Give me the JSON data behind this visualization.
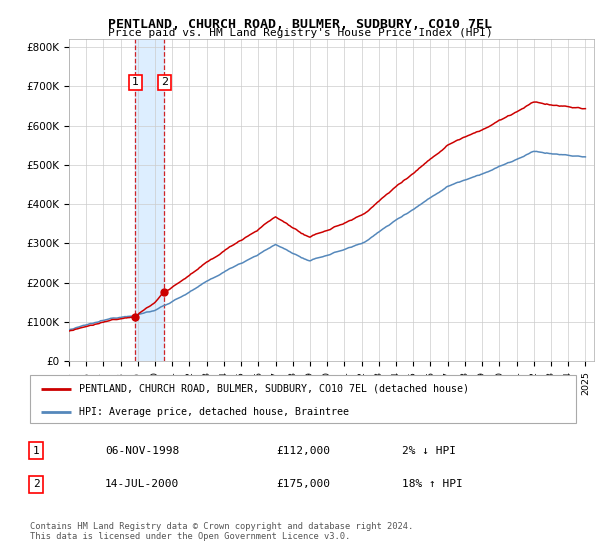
{
  "title": "PENTLAND, CHURCH ROAD, BULMER, SUDBURY, CO10 7EL",
  "subtitle": "Price paid vs. HM Land Registry's House Price Index (HPI)",
  "legend_line1": "PENTLAND, CHURCH ROAD, BULMER, SUDBURY, CO10 7EL (detached house)",
  "legend_line2": "HPI: Average price, detached house, Braintree",
  "table_row1": [
    "1",
    "06-NOV-1998",
    "£112,000",
    "2% ↓ HPI"
  ],
  "table_row2": [
    "2",
    "14-JUL-2000",
    "£175,000",
    "18% ↑ HPI"
  ],
  "footer": "Contains HM Land Registry data © Crown copyright and database right 2024.\nThis data is licensed under the Open Government Licence v3.0.",
  "red_color": "#cc0000",
  "blue_color": "#5588bb",
  "shade_color": "#ddeeff",
  "sale1_year": 1998.85,
  "sale1_price": 112000,
  "sale2_year": 2000.54,
  "sale2_price": 175000,
  "ylim": [
    0,
    820000
  ],
  "yticks": [
    0,
    100000,
    200000,
    300000,
    400000,
    500000,
    600000,
    700000,
    800000
  ],
  "ytick_labels": [
    "£0",
    "£100K",
    "£200K",
    "£300K",
    "£400K",
    "£500K",
    "£600K",
    "£700K",
    "£800K"
  ],
  "xmin": 1995.0,
  "xmax": 2025.5
}
